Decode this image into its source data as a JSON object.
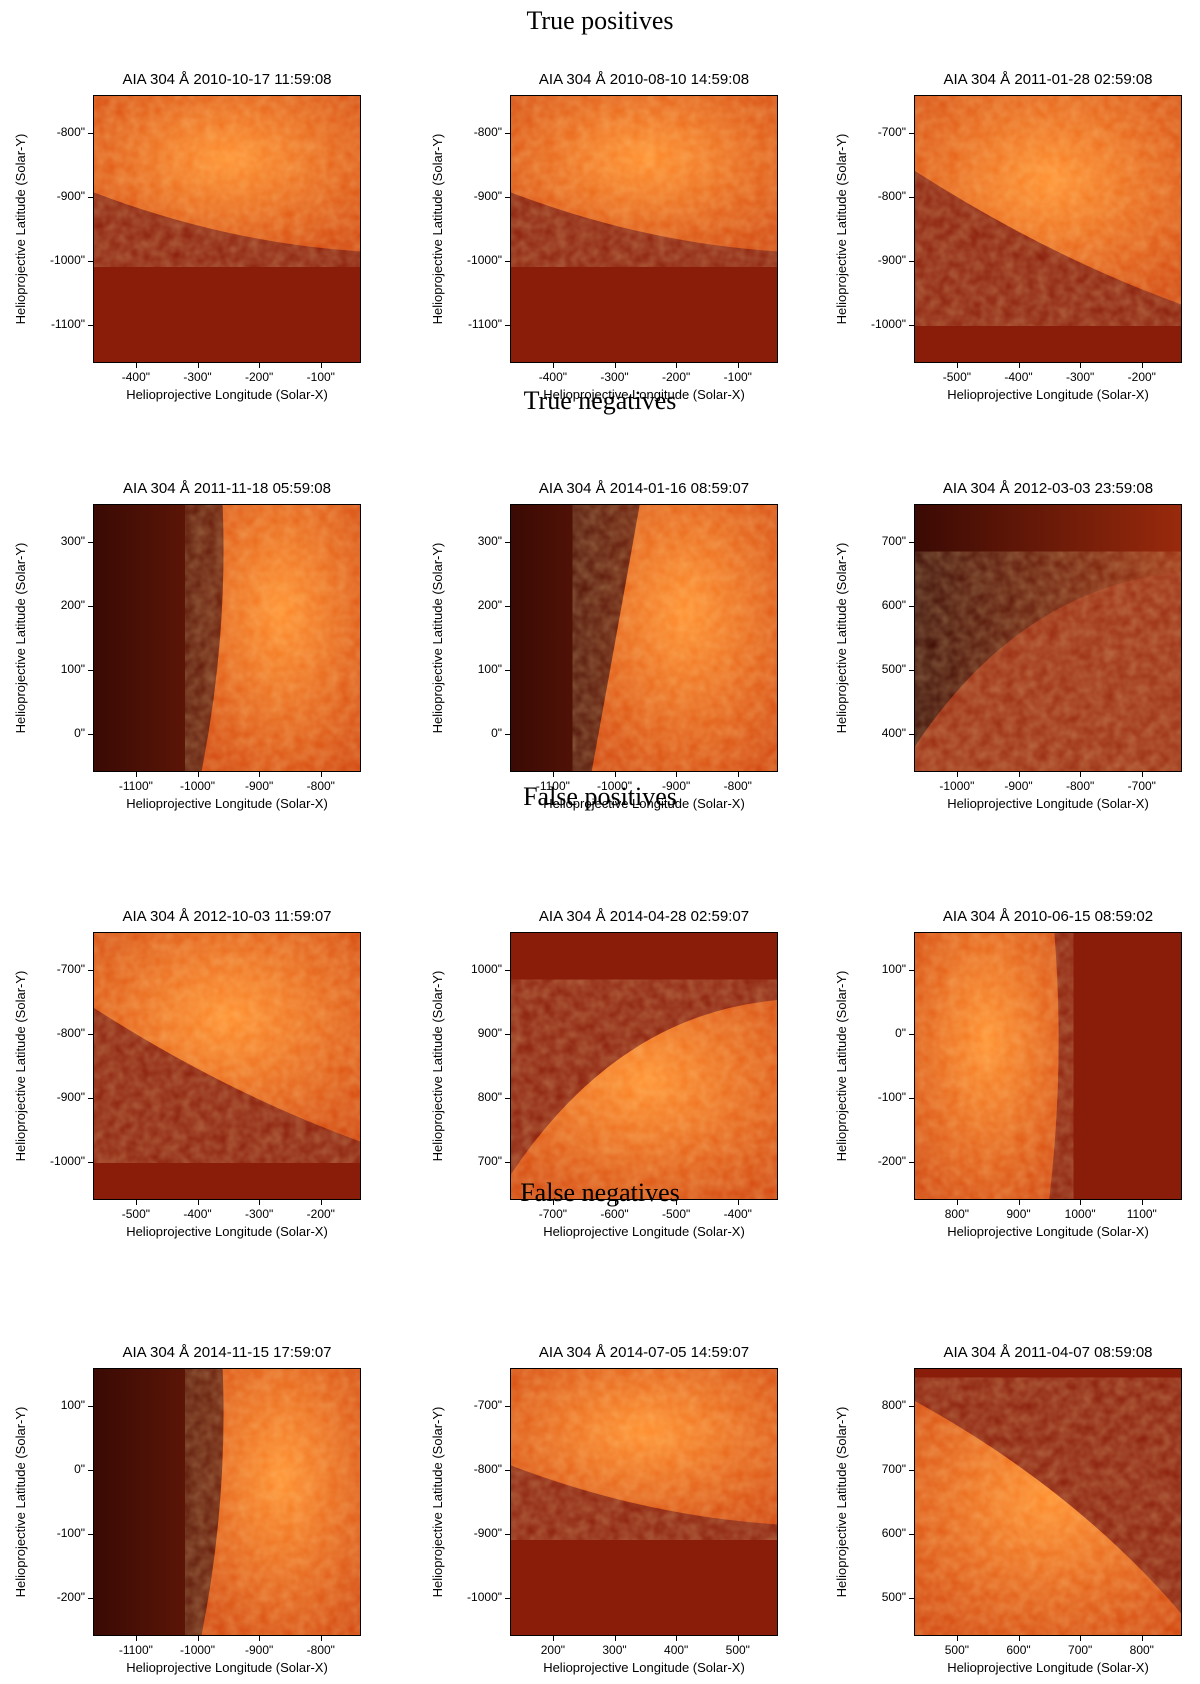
{
  "sections": [
    {
      "title": "True positives",
      "panels": [
        {
          "title": "AIA 304 Å 2010-10-17 11:59:08",
          "xticks": [
            "-400\"",
            "-300\"",
            "-200\"",
            "-100\""
          ],
          "yticks": [
            "-800\"",
            "-900\"",
            "-1000\"",
            "-1100\""
          ],
          "xlabel": "Helioprojective Longitude (Solar-X)",
          "ylabel": "Helioprojective Latitude (Solar-Y)",
          "scene": "limb-bottom"
        },
        {
          "title": "AIA 304 Å 2010-08-10 14:59:08",
          "xticks": [
            "-400\"",
            "-300\"",
            "-200\"",
            "-100\""
          ],
          "yticks": [
            "-800\"",
            "-900\"",
            "-1000\"",
            "-1100\""
          ],
          "xlabel": "Helioprojective Longitude (Solar-X)",
          "ylabel": "Helioprojective Latitude (Solar-Y)",
          "scene": "limb-bottom"
        },
        {
          "title": "AIA 304 Å 2011-01-28 02:59:08",
          "xticks": [
            "-500\"",
            "-400\"",
            "-300\"",
            "-200\""
          ],
          "yticks": [
            "-700\"",
            "-800\"",
            "-900\"",
            "-1000\""
          ],
          "xlabel": "Helioprojective Longitude (Solar-X)",
          "ylabel": "Helioprojective Latitude (Solar-Y)",
          "scene": "limb-bottom-steep"
        }
      ]
    },
    {
      "title": "True negatives",
      "panels": [
        {
          "title": "AIA 304 Å 2011-11-18 05:59:08",
          "xticks": [
            "-1100\"",
            "-1000\"",
            "-900\"",
            "-800\""
          ],
          "yticks": [
            "300\"",
            "200\"",
            "100\"",
            "0\""
          ],
          "xlabel": "Helioprojective Longitude (Solar-X)",
          "ylabel": "Helioprojective Latitude (Solar-Y)",
          "scene": "limb-left"
        },
        {
          "title": "AIA 304 Å 2014-01-16 08:59:07",
          "xticks": [
            "-1100\"",
            "-1000\"",
            "-900\"",
            "-800\""
          ],
          "yticks": [
            "300\"",
            "200\"",
            "100\"",
            "0\""
          ],
          "xlabel": "Helioprojective Longitude (Solar-X)",
          "ylabel": "Helioprojective Latitude (Solar-Y)",
          "scene": "limb-left-curve"
        },
        {
          "title": "AIA 304 Å 2012-03-03 23:59:08",
          "xticks": [
            "-1000\"",
            "-900\"",
            "-800\"",
            "-700\""
          ],
          "yticks": [
            "700\"",
            "600\"",
            "500\"",
            "400\""
          ],
          "xlabel": "Helioprojective Longitude (Solar-X)",
          "ylabel": "Helioprojective Latitude (Solar-Y)",
          "scene": "limb-topright-dark"
        }
      ]
    },
    {
      "title": "False positives",
      "panels": [
        {
          "title": "AIA 304 Å 2012-10-03 11:59:07",
          "xticks": [
            "-500\"",
            "-400\"",
            "-300\"",
            "-200\""
          ],
          "yticks": [
            "-700\"",
            "-800\"",
            "-900\"",
            "-1000\""
          ],
          "xlabel": "Helioprojective Longitude (Solar-X)",
          "ylabel": "Helioprojective Latitude (Solar-Y)",
          "scene": "limb-bottom-steep"
        },
        {
          "title": "AIA 304 Å 2014-04-28 02:59:07",
          "xticks": [
            "-700\"",
            "-600\"",
            "-500\"",
            "-400\""
          ],
          "yticks": [
            "1000\"",
            "900\"",
            "800\"",
            "700\""
          ],
          "xlabel": "Helioprojective Longitude (Solar-X)",
          "ylabel": "Helioprojective Latitude (Solar-Y)",
          "scene": "limb-topright"
        },
        {
          "title": "AIA 304 Å 2010-06-15 08:59:02",
          "xticks": [
            "800\"",
            "900\"",
            "1000\"",
            "1100\""
          ],
          "yticks": [
            "100\"",
            "0\"",
            "-100\"",
            "-200\""
          ],
          "xlabel": "Helioprojective Longitude (Solar-X)",
          "ylabel": "Helioprojective Latitude (Solar-Y)",
          "scene": "limb-right"
        }
      ]
    },
    {
      "title": "False negatives",
      "panels": [
        {
          "title": "AIA 304 Å 2014-11-15 17:59:07",
          "xticks": [
            "-1100\"",
            "-1000\"",
            "-900\"",
            "-800\""
          ],
          "yticks": [
            "100\"",
            "0\"",
            "-100\"",
            "-200\""
          ],
          "xlabel": "Helioprojective Longitude (Solar-X)",
          "ylabel": "Helioprojective Latitude (Solar-Y)",
          "scene": "limb-left"
        },
        {
          "title": "AIA 304 Å 2014-07-05 14:59:07",
          "xticks": [
            "200\"",
            "300\"",
            "400\"",
            "500\""
          ],
          "yticks": [
            "-700\"",
            "-800\"",
            "-900\"",
            "-1000\""
          ],
          "xlabel": "Helioprojective Longitude (Solar-X)",
          "ylabel": "Helioprojective Latitude (Solar-Y)",
          "scene": "limb-bottom"
        },
        {
          "title": "AIA 304 Å 2011-04-07 08:59:08",
          "xticks": [
            "500\"",
            "600\"",
            "700\"",
            "800\""
          ],
          "yticks": [
            "800\"",
            "700\"",
            "600\"",
            "500\""
          ],
          "xlabel": "Helioprojective Longitude (Solar-X)",
          "ylabel": "Helioprojective Latitude (Solar-Y)",
          "scene": "limb-diag-right"
        }
      ]
    }
  ],
  "colors": {
    "disk": "#e8500f",
    "disk_bright": "#ff9a3a",
    "sky": "#8a1a0a",
    "sky_dark": "#2a0804"
  }
}
